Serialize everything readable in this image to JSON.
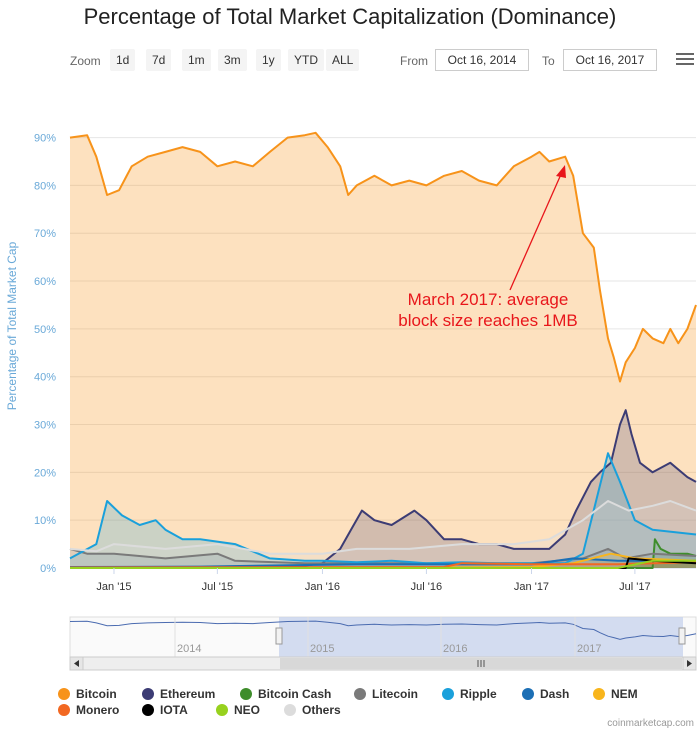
{
  "title": "Percentage of Total Market Capitalization (Dominance)",
  "toolbar": {
    "zoom_label": "Zoom",
    "zoom_buttons": [
      "1d",
      "7d",
      "1m",
      "3m",
      "1y",
      "YTD",
      "ALL"
    ],
    "from_label": "From",
    "from_value": "Oct 16, 2014",
    "to_label": "To",
    "to_value": "Oct 16, 2017",
    "menu_icon": "hamburger-menu-icon"
  },
  "credit": "coinmarketcap.com",
  "annotation": {
    "line1": "March 2017: average",
    "line2": "block size reaches 1MB",
    "color": "#e8161b"
  },
  "chart_data": {
    "type": "area",
    "ylabel": "Percentage of Total Market Cap",
    "ylim": [
      0,
      92
    ],
    "y_ticks": [
      "0%",
      "10%",
      "20%",
      "30%",
      "40%",
      "50%",
      "60%",
      "70%",
      "80%",
      "90%"
    ],
    "y_tick_values": [
      0,
      10,
      20,
      30,
      40,
      50,
      60,
      70,
      80,
      90
    ],
    "x_range": [
      "2014-10-16",
      "2017-10-16"
    ],
    "x_ticks": [
      {
        "label": "Jan '15",
        "date": "2015-01-01"
      },
      {
        "label": "Jul '15",
        "date": "2015-07-01"
      },
      {
        "label": "Jan '16",
        "date": "2016-01-01"
      },
      {
        "label": "Jul '16",
        "date": "2016-07-01"
      },
      {
        "label": "Jan '17",
        "date": "2017-01-01"
      },
      {
        "label": "Jul '17",
        "date": "2017-07-01"
      }
    ],
    "legend_position": "bottom",
    "series": [
      {
        "name": "Bitcoin",
        "color": "#f7931a",
        "points": [
          [
            "2014-10-16",
            90
          ],
          [
            "2014-11-15",
            90.5
          ],
          [
            "2014-12-01",
            86
          ],
          [
            "2014-12-20",
            78
          ],
          [
            "2015-01-10",
            79
          ],
          [
            "2015-02-01",
            84
          ],
          [
            "2015-03-01",
            86
          ],
          [
            "2015-04-01",
            87
          ],
          [
            "2015-05-01",
            88
          ],
          [
            "2015-06-01",
            87
          ],
          [
            "2015-07-01",
            84
          ],
          [
            "2015-08-01",
            85
          ],
          [
            "2015-09-01",
            84
          ],
          [
            "2015-10-01",
            87
          ],
          [
            "2015-11-01",
            90
          ],
          [
            "2015-12-01",
            90.5
          ],
          [
            "2015-12-20",
            91
          ],
          [
            "2016-01-10",
            88
          ],
          [
            "2016-02-01",
            84
          ],
          [
            "2016-02-15",
            78
          ],
          [
            "2016-03-01",
            80
          ],
          [
            "2016-04-01",
            82
          ],
          [
            "2016-05-01",
            80
          ],
          [
            "2016-06-01",
            81
          ],
          [
            "2016-07-01",
            80
          ],
          [
            "2016-08-01",
            82
          ],
          [
            "2016-09-01",
            83
          ],
          [
            "2016-10-01",
            81
          ],
          [
            "2016-11-01",
            80
          ],
          [
            "2016-12-01",
            84
          ],
          [
            "2017-01-01",
            86
          ],
          [
            "2017-01-15",
            87
          ],
          [
            "2017-02-01",
            85
          ],
          [
            "2017-03-01",
            86
          ],
          [
            "2017-03-15",
            82
          ],
          [
            "2017-04-01",
            70
          ],
          [
            "2017-04-20",
            67
          ],
          [
            "2017-05-01",
            58
          ],
          [
            "2017-05-15",
            48
          ],
          [
            "2017-05-25",
            44
          ],
          [
            "2017-06-05",
            39
          ],
          [
            "2017-06-15",
            43
          ],
          [
            "2017-07-01",
            46
          ],
          [
            "2017-07-15",
            50
          ],
          [
            "2017-08-01",
            48
          ],
          [
            "2017-08-20",
            47
          ],
          [
            "2017-09-01",
            50
          ],
          [
            "2017-09-15",
            47
          ],
          [
            "2017-10-01",
            50
          ],
          [
            "2017-10-16",
            55
          ]
        ]
      },
      {
        "name": "Ethereum",
        "color": "#3c3c74",
        "points": [
          [
            "2014-10-16",
            0
          ],
          [
            "2015-08-01",
            0
          ],
          [
            "2015-10-01",
            0.3
          ],
          [
            "2015-12-01",
            0.5
          ],
          [
            "2016-01-01",
            1
          ],
          [
            "2016-02-01",
            4
          ],
          [
            "2016-02-20",
            8
          ],
          [
            "2016-03-10",
            12
          ],
          [
            "2016-04-01",
            10
          ],
          [
            "2016-05-01",
            9
          ],
          [
            "2016-06-10",
            12
          ],
          [
            "2016-07-01",
            10
          ],
          [
            "2016-08-01",
            6
          ],
          [
            "2016-09-01",
            6
          ],
          [
            "2016-10-01",
            5
          ],
          [
            "2016-11-01",
            5
          ],
          [
            "2016-12-01",
            4
          ],
          [
            "2017-01-01",
            4
          ],
          [
            "2017-02-01",
            4
          ],
          [
            "2017-03-01",
            7
          ],
          [
            "2017-03-20",
            12
          ],
          [
            "2017-04-15",
            18
          ],
          [
            "2017-05-01",
            20
          ],
          [
            "2017-05-20",
            22
          ],
          [
            "2017-06-05",
            30
          ],
          [
            "2017-06-15",
            33
          ],
          [
            "2017-06-25",
            28
          ],
          [
            "2017-07-10",
            22
          ],
          [
            "2017-08-01",
            20
          ],
          [
            "2017-09-01",
            22
          ],
          [
            "2017-10-01",
            19
          ],
          [
            "2017-10-16",
            18
          ]
        ]
      },
      {
        "name": "Bitcoin Cash",
        "color": "#3e8d2b",
        "points": [
          [
            "2014-10-16",
            0
          ],
          [
            "2017-08-01",
            0
          ],
          [
            "2017-08-05",
            6
          ],
          [
            "2017-08-15",
            4
          ],
          [
            "2017-09-01",
            3
          ],
          [
            "2017-10-01",
            3
          ],
          [
            "2017-10-16",
            2.5
          ]
        ]
      },
      {
        "name": "Litecoin",
        "color": "#7a7a7a",
        "points": [
          [
            "2014-10-16",
            4
          ],
          [
            "2014-11-15",
            3
          ],
          [
            "2015-01-01",
            3
          ],
          [
            "2015-04-01",
            2
          ],
          [
            "2015-07-01",
            3
          ],
          [
            "2015-08-01",
            1.5
          ],
          [
            "2015-12-01",
            1
          ],
          [
            "2016-06-01",
            1
          ],
          [
            "2017-01-01",
            1
          ],
          [
            "2017-04-01",
            2
          ],
          [
            "2017-05-15",
            4
          ],
          [
            "2017-06-15",
            2
          ],
          [
            "2017-08-01",
            3
          ],
          [
            "2017-10-16",
            2.5
          ]
        ]
      },
      {
        "name": "Ripple",
        "color": "#1aa0db",
        "points": [
          [
            "2014-10-16",
            2
          ],
          [
            "2014-12-01",
            5
          ],
          [
            "2014-12-20",
            14
          ],
          [
            "2015-01-15",
            11
          ],
          [
            "2015-02-15",
            9
          ],
          [
            "2015-03-15",
            10
          ],
          [
            "2015-04-01",
            8
          ],
          [
            "2015-05-01",
            6
          ],
          [
            "2015-06-01",
            6
          ],
          [
            "2015-08-01",
            5
          ],
          [
            "2015-10-01",
            2
          ],
          [
            "2015-12-01",
            1.5
          ],
          [
            "2016-01-01",
            1.5
          ],
          [
            "2016-03-01",
            1.2
          ],
          [
            "2016-05-01",
            1.5
          ],
          [
            "2016-07-01",
            1
          ],
          [
            "2016-09-01",
            1.2
          ],
          [
            "2016-11-01",
            1
          ],
          [
            "2017-01-01",
            1
          ],
          [
            "2017-03-01",
            1
          ],
          [
            "2017-04-01",
            3
          ],
          [
            "2017-05-15",
            24
          ],
          [
            "2017-06-05",
            18
          ],
          [
            "2017-07-01",
            10
          ],
          [
            "2017-08-01",
            8
          ],
          [
            "2017-10-16",
            7
          ]
        ]
      },
      {
        "name": "Dash",
        "color": "#1c6fb5",
        "points": [
          [
            "2014-10-16",
            0.2
          ],
          [
            "2015-06-01",
            0.3
          ],
          [
            "2016-03-01",
            0.8
          ],
          [
            "2017-01-01",
            0.8
          ],
          [
            "2017-03-15",
            2
          ],
          [
            "2017-06-01",
            1.5
          ],
          [
            "2017-10-16",
            1.5
          ]
        ]
      },
      {
        "name": "NEM",
        "color": "#f8b51c",
        "points": [
          [
            "2014-10-16",
            0
          ],
          [
            "2015-04-01",
            0.1
          ],
          [
            "2016-06-01",
            0.1
          ],
          [
            "2017-01-01",
            0.2
          ],
          [
            "2017-03-15",
            1
          ],
          [
            "2017-05-20",
            3
          ],
          [
            "2017-07-01",
            2
          ],
          [
            "2017-10-16",
            1.5
          ]
        ]
      },
      {
        "name": "Monero",
        "color": "#f26822",
        "points": [
          [
            "2014-10-16",
            0.1
          ],
          [
            "2016-08-01",
            0.2
          ],
          [
            "2016-09-01",
            1
          ],
          [
            "2017-01-01",
            0.8
          ],
          [
            "2017-06-01",
            0.8
          ],
          [
            "2017-10-16",
            1.2
          ]
        ]
      },
      {
        "name": "IOTA",
        "color": "#000000",
        "points": [
          [
            "2014-10-16",
            0
          ],
          [
            "2017-06-15",
            0
          ],
          [
            "2017-06-20",
            2
          ],
          [
            "2017-08-01",
            1.5
          ],
          [
            "2017-10-16",
            1
          ]
        ]
      },
      {
        "name": "NEO",
        "color": "#97d11e",
        "points": [
          [
            "2014-10-16",
            0
          ],
          [
            "2017-06-01",
            0
          ],
          [
            "2017-08-01",
            1.5
          ],
          [
            "2017-10-16",
            1.5
          ]
        ]
      },
      {
        "name": "Others",
        "color": "#dcdcdc",
        "points": [
          [
            "2014-10-16",
            4
          ],
          [
            "2014-12-01",
            3.5
          ],
          [
            "2015-01-01",
            5
          ],
          [
            "2015-04-01",
            4
          ],
          [
            "2015-07-01",
            5
          ],
          [
            "2015-10-01",
            3
          ],
          [
            "2016-01-01",
            3
          ],
          [
            "2016-03-01",
            4
          ],
          [
            "2016-06-01",
            4
          ],
          [
            "2016-09-01",
            5
          ],
          [
            "2016-12-01",
            5
          ],
          [
            "2017-02-01",
            6
          ],
          [
            "2017-04-01",
            10
          ],
          [
            "2017-05-15",
            14
          ],
          [
            "2017-06-20",
            12
          ],
          [
            "2017-08-01",
            13
          ],
          [
            "2017-09-01",
            14
          ],
          [
            "2017-10-16",
            12
          ]
        ]
      }
    ]
  },
  "navigator": {
    "year_labels": [
      "2014",
      "2015",
      "2016",
      "2017"
    ],
    "scroll_left_icon": "triangle-left-icon",
    "scroll_right_icon": "triangle-right-icon",
    "scroll_grip_icon": "grip-icon"
  }
}
